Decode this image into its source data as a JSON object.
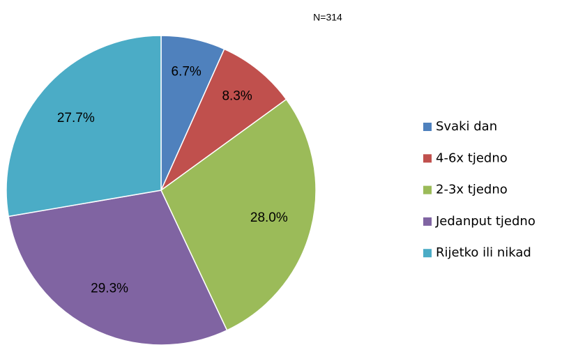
{
  "chart_data": {
    "type": "pie",
    "subtitle": "N=314",
    "categories": [
      "Svaki dan",
      "4-6x tjedno",
      "2-3x tjedno",
      "Jedanput tjedno",
      "Rijetko ili nikad"
    ],
    "values": [
      6.7,
      8.3,
      28.0,
      29.3,
      27.7
    ],
    "value_labels": [
      "6.7%",
      "8.3%",
      "28.0%",
      "29.3%",
      "27.7%"
    ],
    "colors": [
      "#4f81bd",
      "#c0504d",
      "#9bbb59",
      "#8064a2",
      "#4bacc6"
    ],
    "legend": "right"
  }
}
